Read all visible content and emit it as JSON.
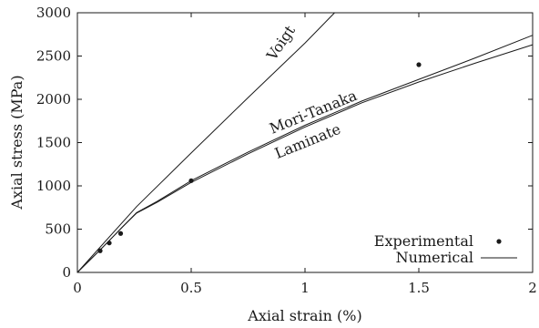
{
  "chart_data": {
    "type": "line",
    "xlabel": "Axial strain (%)",
    "ylabel": "Axial stress (MPa)",
    "xlim": [
      0,
      2
    ],
    "ylim": [
      0,
      3000
    ],
    "x_ticks": [
      0,
      0.5,
      1,
      1.5,
      2
    ],
    "x_tick_labels": [
      "0",
      "0.5",
      "1",
      "1.5",
      "2"
    ],
    "y_ticks": [
      0,
      500,
      1000,
      1500,
      2000,
      2500,
      3000
    ],
    "y_tick_labels": [
      "0",
      "500",
      "1000",
      "1500",
      "2000",
      "2500",
      "3000"
    ],
    "grid": false,
    "legend_position": "bottom-right",
    "legend": {
      "experimental_label": "Experimental",
      "numerical_label": "Numerical"
    },
    "series": [
      {
        "name": "Voigt",
        "style": "line",
        "x": [
          0,
          0.26,
          0.5,
          0.75,
          1.0,
          1.13
        ],
        "y": [
          0,
          760,
          1380,
          2020,
          2650,
          3000
        ]
      },
      {
        "name": "Mori-Tanaka",
        "style": "line",
        "x": [
          0,
          0.1,
          0.2,
          0.26,
          0.35,
          0.5,
          0.75,
          1.0,
          1.25,
          1.5,
          1.75,
          2.0
        ],
        "y": [
          0,
          260,
          530,
          690,
          820,
          1060,
          1390,
          1700,
          1980,
          2230,
          2480,
          2740
        ]
      },
      {
        "name": "Laminate",
        "style": "line",
        "x": [
          0,
          0.1,
          0.2,
          0.26,
          0.35,
          0.5,
          0.75,
          1.0,
          1.25,
          1.5,
          1.75,
          2.0
        ],
        "y": [
          0,
          260,
          530,
          685,
          810,
          1040,
          1370,
          1680,
          1960,
          2200,
          2420,
          2630
        ]
      },
      {
        "name": "Experimental",
        "style": "points",
        "x": [
          0.1,
          0.14,
          0.19,
          0.5,
          1.5
        ],
        "y": [
          250,
          340,
          450,
          1060,
          2400
        ]
      }
    ]
  }
}
